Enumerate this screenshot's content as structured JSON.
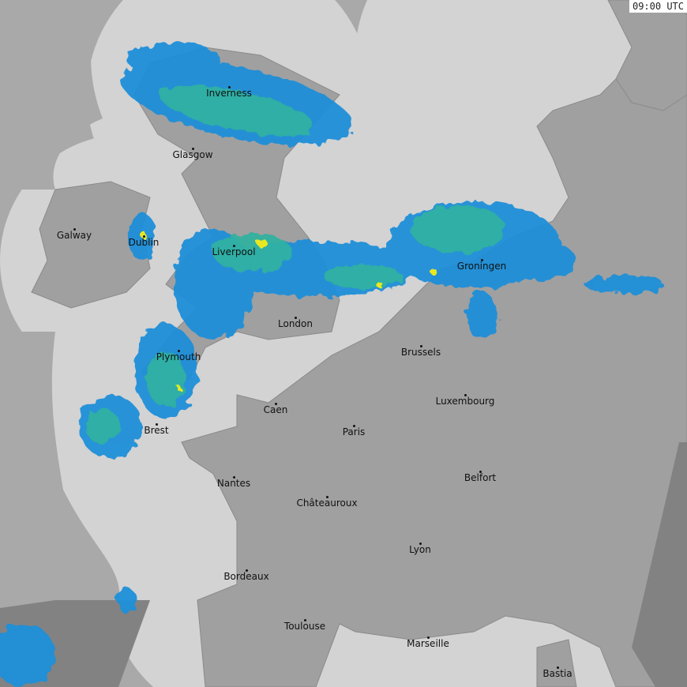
{
  "timestamp": "09:00 UTC",
  "colors": {
    "coverage_sea": "#d3d3d3",
    "outside_sea": "#a9a9a9",
    "land": "#a0a0a0",
    "outside_land": "#828282",
    "rain_light": "#1f8fd8",
    "rain_mid": "#2fb3a0",
    "rain_heavy": "#e8e820"
  },
  "cities": [
    {
      "name": "Inverness"
    },
    {
      "name": "Glasgow"
    },
    {
      "name": "Galway"
    },
    {
      "name": "Dublin"
    },
    {
      "name": "Liverpool"
    },
    {
      "name": "London"
    },
    {
      "name": "Plymouth"
    },
    {
      "name": "Brest"
    },
    {
      "name": "Caen"
    },
    {
      "name": "Paris"
    },
    {
      "name": "Brussels"
    },
    {
      "name": "Groningen"
    },
    {
      "name": "Luxembourg"
    },
    {
      "name": "Nantes"
    },
    {
      "name": "Belfort"
    },
    {
      "name": "Châteauroux"
    },
    {
      "name": "Lyon"
    },
    {
      "name": "Bordeaux"
    },
    {
      "name": "Toulouse"
    },
    {
      "name": "Marseille"
    },
    {
      "name": "Bastia"
    }
  ]
}
